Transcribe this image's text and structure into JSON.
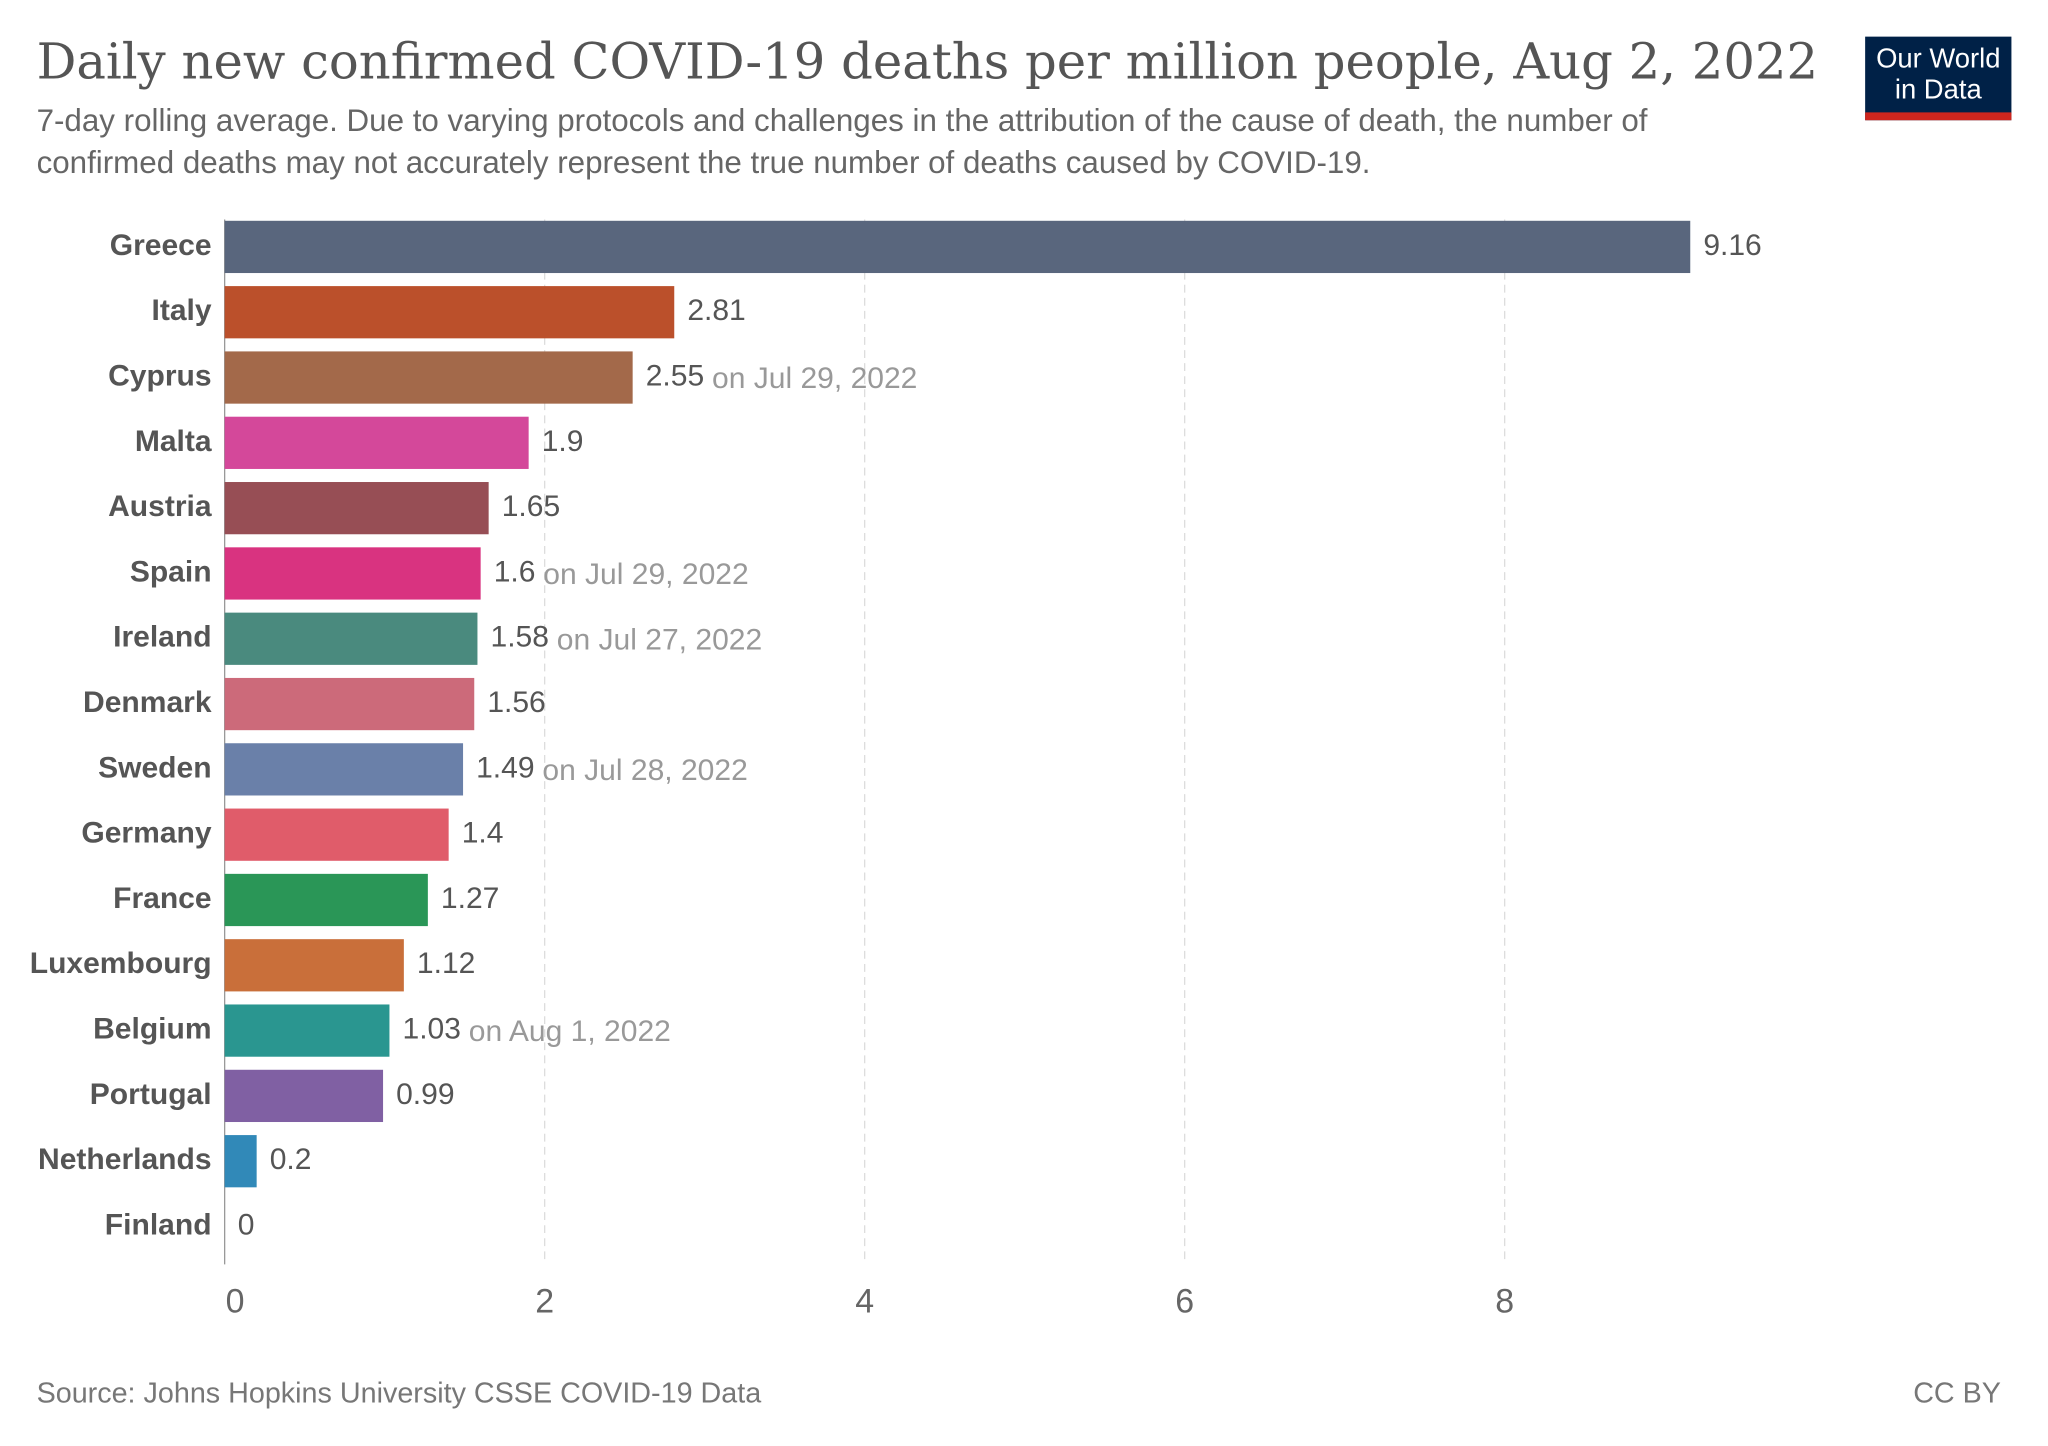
{
  "chart_data": {
    "type": "bar",
    "orientation": "horizontal",
    "title": "Daily new confirmed COVID-19 deaths per million people, Aug 2, 2022",
    "subtitle": [
      "7-day rolling average. Due to varying protocols and challenges in the attribution of the cause of death, the number of",
      "confirmed deaths may not accurately represent the true number of deaths caused by COVID-19."
    ],
    "logo": [
      "Our World",
      "in Data"
    ],
    "source": "Source: Johns Hopkins University CSSE COVID-19 Data",
    "license": "CC BY",
    "categories": [
      "Greece",
      "Italy",
      "Cyprus",
      "Malta",
      "Austria",
      "Spain",
      "Ireland",
      "Denmark",
      "Sweden",
      "Germany",
      "France",
      "Luxembourg",
      "Belgium",
      "Portugal",
      "Netherlands",
      "Finland"
    ],
    "values": [
      9.16,
      2.81,
      2.55,
      1.9,
      1.65,
      1.6,
      1.58,
      1.56,
      1.49,
      1.4,
      1.27,
      1.12,
      1.03,
      0.99,
      0.2,
      0
    ],
    "notes": [
      null,
      null,
      "on Jul 29, 2022",
      null,
      null,
      "on Jul 29, 2022",
      "on Jul 27, 2022",
      null,
      "on Jul 28, 2022",
      null,
      null,
      null,
      "on Aug 1, 2022",
      null,
      null,
      null
    ],
    "colors": [
      "#59667d",
      "#bb502b",
      "#a3694a",
      "#d4489a",
      "#974e55",
      "#d93380",
      "#4a8a7e",
      "#cc6a7a",
      "#6a80a9",
      "#e05c6a",
      "#2a9657",
      "#c96f3a",
      "#2a9690",
      "#8060a3",
      "#3189b8",
      "#999999"
    ],
    "xlim": [
      0,
      9.16
    ],
    "xticks": [
      0,
      2,
      4,
      6,
      8
    ],
    "grid": true
  }
}
